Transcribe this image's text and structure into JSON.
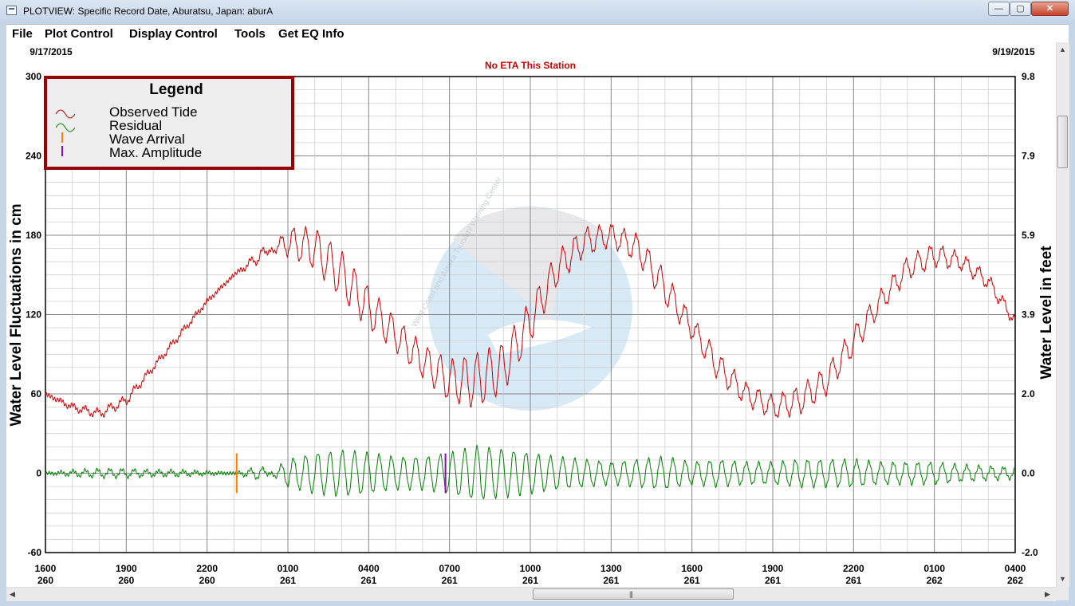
{
  "window": {
    "title": "PLOTVIEW: Specific Record Date, Aburatsu, Japan: aburA",
    "minimize_glyph": "—",
    "maximize_glyph": "▢",
    "close_glyph": "✕"
  },
  "menu": [
    "File",
    "Plot Control",
    "Display Control",
    "Tools",
    "Get EQ Info"
  ],
  "plot": {
    "start_date": "9/17/2015",
    "end_date": "9/19/2015",
    "eta_notice": "No ETA This Station",
    "left_axis_label": "Water Level Fluctuations in cm",
    "right_axis_label": "Water Level in feet",
    "watermark_text": "West Coast and Alaska Tsunami Warning Center",
    "legend": {
      "title": "Legend",
      "items": [
        {
          "label": "Observed Tide",
          "symbol": "wave",
          "color": "#cc0000"
        },
        {
          "label": "Residual",
          "symbol": "wave",
          "color": "#008000"
        },
        {
          "label": "Wave Arrival",
          "symbol": "tick",
          "color": "#ff8000"
        },
        {
          "label": "Max. Amplitude",
          "symbol": "tick",
          "color": "#9900cc"
        }
      ]
    },
    "colors": {
      "observed": "#cc0000",
      "residual": "#008000",
      "arrival": "#ff8000",
      "max_amplitude": "#9900cc",
      "eta_text": "#cc0000",
      "legend_border": "#990000"
    }
  },
  "chart_data": {
    "type": "line",
    "x_unit": "hours since 1600 day 260",
    "xlim": [
      0,
      36
    ],
    "x_ticks": [
      {
        "time": "1600",
        "day": "260"
      },
      {
        "time": "1900",
        "day": "260"
      },
      {
        "time": "2200",
        "day": "260"
      },
      {
        "time": "0100",
        "day": "261"
      },
      {
        "time": "0400",
        "day": "261"
      },
      {
        "time": "0700",
        "day": "261"
      },
      {
        "time": "1000",
        "day": "261"
      },
      {
        "time": "1300",
        "day": "261"
      },
      {
        "time": "1600",
        "day": "261"
      },
      {
        "time": "1900",
        "day": "261"
      },
      {
        "time": "2200",
        "day": "261"
      },
      {
        "time": "0100",
        "day": "262"
      },
      {
        "time": "0400",
        "day": "262"
      }
    ],
    "ylim": [
      -60,
      300
    ],
    "y_ticks_left": [
      "300",
      "240",
      "180",
      "120",
      "60",
      "0",
      "-60"
    ],
    "y_ticks_right": [
      "9.8",
      "7.9",
      "5.9",
      "3.9",
      "2.0",
      "0.0",
      "-2.0"
    ],
    "grid": true,
    "series": [
      {
        "name": "Observed Tide",
        "x": [
          0,
          1,
          2,
          3,
          4,
          5,
          6,
          7,
          8,
          9,
          10,
          11,
          12,
          13,
          14,
          15,
          16,
          17,
          18,
          19,
          20,
          21,
          22,
          23,
          24,
          25,
          26,
          27,
          28,
          29,
          30,
          31,
          32,
          33,
          34,
          35,
          36
        ],
        "y": [
          60,
          50,
          45,
          55,
          80,
          105,
          130,
          150,
          165,
          175,
          170,
          150,
          125,
          105,
          85,
          70,
          70,
          80,
          115,
          155,
          175,
          180,
          170,
          140,
          110,
          80,
          60,
          50,
          55,
          70,
          100,
          130,
          155,
          165,
          160,
          145,
          115
        ]
      },
      {
        "name": "Residual",
        "x": [
          0,
          1,
          2,
          3,
          4,
          5,
          6,
          7,
          8,
          9,
          10,
          11,
          12,
          13,
          14,
          15,
          16,
          17,
          18,
          19,
          20,
          21,
          22,
          23,
          24,
          25,
          26,
          27,
          28,
          29,
          30,
          31,
          32,
          33,
          34,
          35,
          36
        ],
        "y": [
          0,
          2,
          3,
          3,
          2,
          2,
          1,
          0,
          -5,
          10,
          15,
          17,
          15,
          12,
          12,
          15,
          20,
          18,
          15,
          12,
          10,
          8,
          10,
          12,
          8,
          10,
          8,
          8,
          10,
          10,
          10,
          8,
          8,
          8,
          6,
          5,
          4
        ],
        "note_values_are_amplitudes": false
      }
    ],
    "markers": [
      {
        "name": "Wave Arrival",
        "x": 7.1
      },
      {
        "name": "Max. Amplitude",
        "x": 14.85
      }
    ]
  }
}
